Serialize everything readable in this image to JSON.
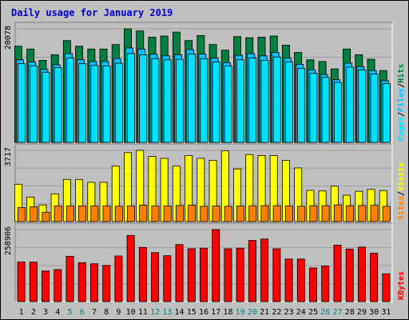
{
  "title": "Daily usage for January 2019",
  "colors": {
    "background": "#c0c0c0",
    "panel": "#c0c0c0",
    "title": "#0000cc",
    "hits": "#008040",
    "files": "#00c0ff",
    "pages": "#00e0ff",
    "visits": "#ffff00",
    "sites": "#ff8000",
    "kbytes": "#ff0000",
    "weekday_label": "#000000",
    "weekend_label": "#008080"
  },
  "chart_data": [
    {
      "type": "bar",
      "panel": "hits-files-pages",
      "y_max_label": "20078",
      "legend": [
        "Pages",
        "/",
        "Files",
        "/",
        "Hits"
      ],
      "ylim": [
        0,
        20078
      ],
      "categories": [
        "1",
        "2",
        "3",
        "4",
        "5",
        "6",
        "7",
        "8",
        "9",
        "10",
        "11",
        "12",
        "13",
        "14",
        "15",
        "16",
        "17",
        "18",
        "19",
        "20",
        "21",
        "22",
        "23",
        "24",
        "25",
        "26",
        "27",
        "28",
        "29",
        "30",
        "31"
      ],
      "weekend_days": [
        "5",
        "6",
        "12",
        "13",
        "19",
        "20",
        "26",
        "27"
      ],
      "series": [
        {
          "name": "Hits",
          "values": [
            17000,
            16500,
            14500,
            15500,
            18000,
            17000,
            16500,
            16500,
            17300,
            20078,
            19700,
            18600,
            18800,
            19500,
            18000,
            18900,
            17300,
            16300,
            18700,
            18500,
            18600,
            18800,
            17200,
            15900,
            14600,
            14300,
            13000,
            16500,
            15500,
            14700,
            12700
          ]
        },
        {
          "name": "Files",
          "values": [
            14600,
            14200,
            12900,
            13700,
            15700,
            14600,
            14300,
            14300,
            14800,
            16700,
            16500,
            15600,
            15300,
            15500,
            16400,
            15600,
            14900,
            14100,
            15400,
            15700,
            15300,
            15900,
            14900,
            13800,
            12800,
            12000,
            11100,
            14000,
            13400,
            12700,
            10900
          ]
        },
        {
          "name": "Pages",
          "values": [
            13900,
            13500,
            12400,
            13200,
            14900,
            13900,
            13600,
            13500,
            14000,
            15700,
            15500,
            14800,
            14600,
            14700,
            15600,
            14800,
            14200,
            13500,
            14600,
            14900,
            14500,
            15100,
            14200,
            13100,
            12200,
            11500,
            10600,
            13300,
            12800,
            12100,
            10400
          ]
        }
      ]
    },
    {
      "type": "bar",
      "panel": "visits-sites",
      "y_max_label": "3717",
      "legend": [
        "Sites",
        "/",
        "Visits"
      ],
      "ylim": [
        0,
        3717
      ],
      "categories": [
        "1",
        "2",
        "3",
        "4",
        "5",
        "6",
        "7",
        "8",
        "9",
        "10",
        "11",
        "12",
        "13",
        "14",
        "15",
        "16",
        "17",
        "18",
        "19",
        "20",
        "21",
        "22",
        "23",
        "24",
        "25",
        "26",
        "27",
        "28",
        "29",
        "30",
        "31"
      ],
      "series": [
        {
          "name": "Visits",
          "values": [
            1950,
            1280,
            870,
            1450,
            2200,
            2200,
            2050,
            2050,
            2900,
            3600,
            3717,
            3400,
            3300,
            2900,
            3450,
            3300,
            3200,
            3700,
            2750,
            3500,
            3450,
            3450,
            3200,
            2800,
            1630,
            1600,
            1850,
            1380,
            1580,
            1680,
            1620
          ]
        },
        {
          "name": "Sites",
          "values": [
            730,
            770,
            490,
            820,
            820,
            820,
            820,
            820,
            800,
            820,
            860,
            820,
            820,
            840,
            860,
            800,
            820,
            800,
            820,
            830,
            830,
            830,
            820,
            800,
            830,
            830,
            870,
            830,
            840,
            850,
            800
          ]
        }
      ]
    },
    {
      "type": "bar",
      "panel": "kbytes",
      "y_max_label": "258906",
      "legend": [
        "KBytes"
      ],
      "ylim": [
        0,
        258906
      ],
      "categories": [
        "1",
        "2",
        "3",
        "4",
        "5",
        "6",
        "7",
        "8",
        "9",
        "10",
        "11",
        "12",
        "13",
        "14",
        "15",
        "16",
        "17",
        "18",
        "19",
        "20",
        "21",
        "22",
        "23",
        "24",
        "25",
        "26",
        "27",
        "28",
        "29",
        "30",
        "31"
      ],
      "series": [
        {
          "name": "KBytes",
          "values": [
            142000,
            142000,
            110000,
            115000,
            163000,
            140000,
            136000,
            130000,
            164000,
            238000,
            195000,
            176000,
            165000,
            205000,
            190000,
            192000,
            258906,
            190000,
            192000,
            220000,
            225000,
            190000,
            153000,
            153000,
            121000,
            128000,
            203000,
            189000,
            196000,
            174000,
            100000
          ]
        }
      ]
    }
  ]
}
